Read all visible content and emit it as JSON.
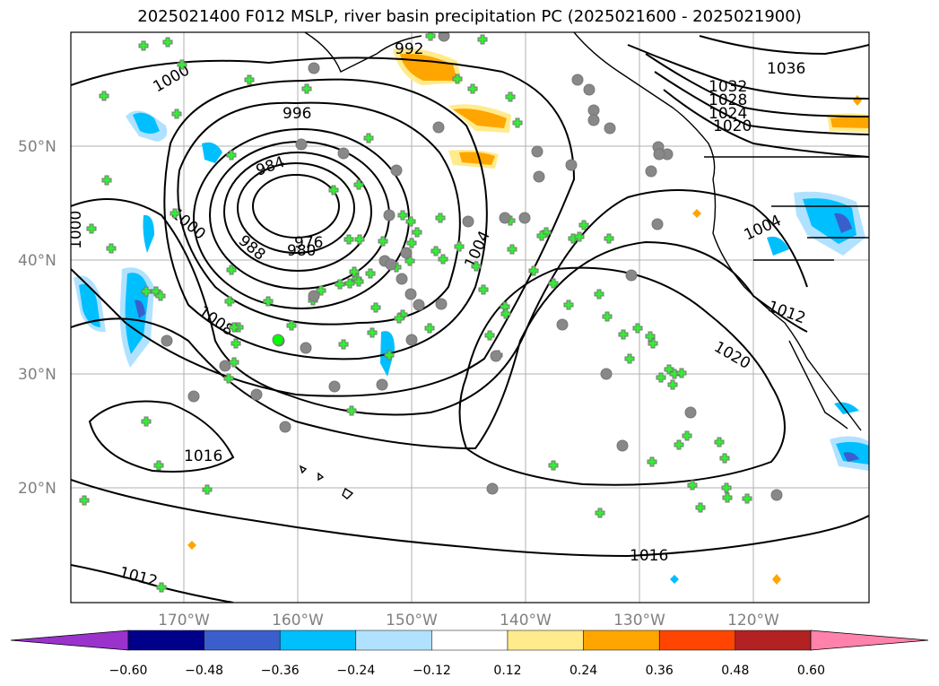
{
  "title": "2025021400 F012 MSLP, river basin precipitation PC (2025021600 - 2025021900)",
  "axes": {
    "lat_labels": [
      "50°N",
      "40°N",
      "30°N",
      "20°N"
    ],
    "lon_labels": [
      "170°W",
      "160°W",
      "150°W",
      "140°W",
      "130°W",
      "120°W"
    ]
  },
  "isobar_labels": [
    "1036",
    "1032",
    "1028",
    "1024",
    "1020",
    "992",
    "1000",
    "996",
    "984",
    "976",
    "980",
    "988",
    "1000",
    "1004",
    "1008",
    "1004",
    "1012",
    "1020",
    "1016",
    "1016",
    "1012"
  ],
  "colorbar": {
    "ticks": [
      "−0.60",
      "−0.48",
      "−0.36",
      "−0.24",
      "−0.12",
      "0.12",
      "0.24",
      "0.36",
      "0.48",
      "0.60"
    ],
    "colors": [
      "#9933cc",
      "#00008b",
      "#3a5fcd",
      "#00bfff",
      "#b0e2ff",
      "#ffffff",
      "#ffeb8c",
      "#ffa500",
      "#ff4500",
      "#b22222",
      "#ff82ab"
    ]
  }
}
